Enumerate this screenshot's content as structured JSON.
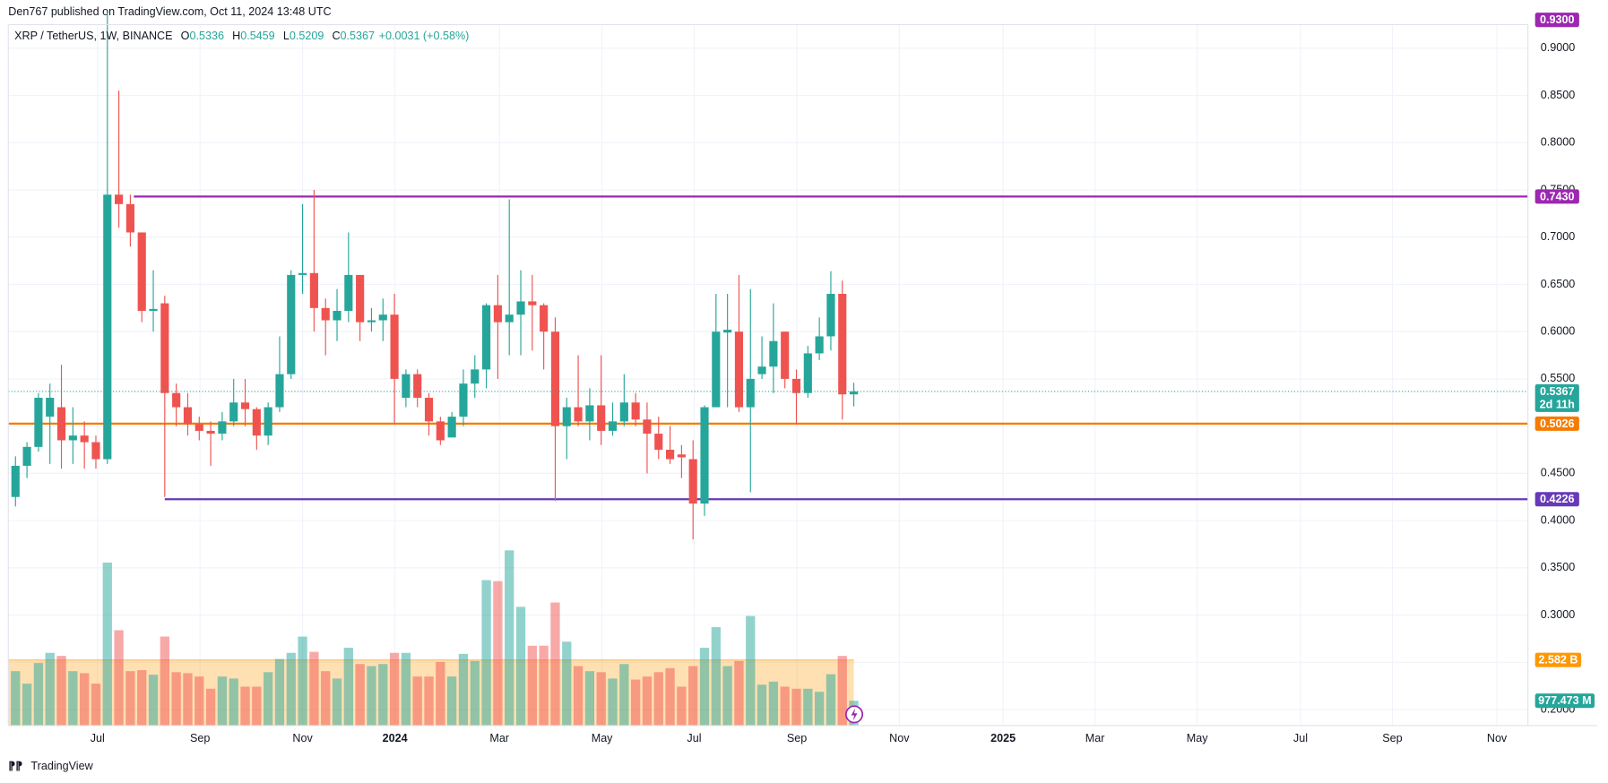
{
  "chart_data": {
    "type": "candlestick",
    "published": "Den767 published on TradingView.com, Oct 11, 2024 13:48 UTC",
    "symbol": "XRP / TetherUS, 1W, BINANCE",
    "ohlc_keys": [
      "O",
      "H",
      "L",
      "C"
    ],
    "change": "+0.0031 (+0.58%)",
    "footer": "TradingView",
    "colors": {
      "up": "#26a69a",
      "down": "#ef5350"
    },
    "grid": true,
    "candles": {
      "open": [
        0.425,
        0.458,
        0.478,
        0.51,
        0.52,
        0.485,
        0.49,
        0.483,
        0.465,
        0.745,
        0.735,
        0.705,
        0.622,
        0.63,
        0.535,
        0.52,
        0.502,
        0.495,
        0.492,
        0.505,
        0.525,
        0.518,
        0.49,
        0.52,
        0.555,
        0.66,
        0.662,
        0.625,
        0.612,
        0.622,
        0.66,
        0.61,
        0.612,
        0.618,
        0.53,
        0.555,
        0.53,
        0.505,
        0.488,
        0.51,
        0.545,
        0.56,
        0.628,
        0.61,
        0.618,
        0.632,
        0.628,
        0.6,
        0.5,
        0.52,
        0.505,
        0.522,
        0.495,
        0.505,
        0.525,
        0.507,
        0.492,
        0.475,
        0.47,
        0.465,
        0.418,
        0.52,
        0.599,
        0.6,
        0.52,
        0.555,
        0.563,
        0.6,
        0.55,
        0.535,
        0.577,
        0.595,
        0.64,
        0.5336
      ],
      "high": [
        0.468,
        0.483,
        0.535,
        0.545,
        0.565,
        0.52,
        0.505,
        0.49,
        0.938,
        0.855,
        0.745,
        0.705,
        0.665,
        0.638,
        0.545,
        0.535,
        0.51,
        0.505,
        0.515,
        0.55,
        0.55,
        0.52,
        0.525,
        0.595,
        0.665,
        0.735,
        0.75,
        0.635,
        0.645,
        0.705,
        0.66,
        0.625,
        0.635,
        0.64,
        0.56,
        0.56,
        0.535,
        0.51,
        0.515,
        0.56,
        0.575,
        0.63,
        0.66,
        0.74,
        0.665,
        0.66,
        0.63,
        0.615,
        0.53,
        0.575,
        0.54,
        0.575,
        0.525,
        0.555,
        0.535,
        0.525,
        0.51,
        0.5,
        0.48,
        0.485,
        0.522,
        0.64,
        0.64,
        0.66,
        0.645,
        0.595,
        0.63,
        0.6,
        0.56,
        0.585,
        0.615,
        0.664,
        0.654,
        0.5459
      ],
      "low": [
        0.415,
        0.445,
        0.473,
        0.46,
        0.455,
        0.46,
        0.455,
        0.455,
        0.46,
        0.71,
        0.69,
        0.61,
        0.6,
        0.425,
        0.5,
        0.49,
        0.485,
        0.458,
        0.485,
        0.5,
        0.5,
        0.475,
        0.48,
        0.515,
        0.55,
        0.64,
        0.6,
        0.575,
        0.59,
        0.61,
        0.59,
        0.6,
        0.59,
        0.502,
        0.52,
        0.52,
        0.49,
        0.48,
        0.5,
        0.5,
        0.53,
        0.54,
        0.55,
        0.575,
        0.575,
        0.58,
        0.56,
        0.421,
        0.465,
        0.5,
        0.485,
        0.48,
        0.49,
        0.5,
        0.5,
        0.45,
        0.465,
        0.46,
        0.445,
        0.38,
        0.405,
        0.52,
        0.52,
        0.515,
        0.43,
        0.55,
        0.535,
        0.54,
        0.502,
        0.53,
        0.57,
        0.58,
        0.507,
        0.5209
      ],
      "close": [
        0.458,
        0.478,
        0.53,
        0.53,
        0.485,
        0.49,
        0.483,
        0.465,
        0.745,
        0.735,
        0.705,
        0.622,
        0.624,
        0.535,
        0.52,
        0.502,
        0.495,
        0.492,
        0.505,
        0.525,
        0.518,
        0.49,
        0.52,
        0.555,
        0.66,
        0.662,
        0.625,
        0.612,
        0.622,
        0.66,
        0.61,
        0.612,
        0.618,
        0.55,
        0.555,
        0.53,
        0.505,
        0.485,
        0.51,
        0.545,
        0.56,
        0.628,
        0.61,
        0.618,
        0.632,
        0.628,
        0.6,
        0.5,
        0.52,
        0.505,
        0.522,
        0.495,
        0.505,
        0.525,
        0.507,
        0.492,
        0.475,
        0.465,
        0.467,
        0.418,
        0.52,
        0.6,
        0.602,
        0.52,
        0.55,
        0.563,
        0.59,
        0.55,
        0.535,
        0.577,
        0.595,
        0.64,
        0.5336,
        0.5367
      ]
    },
    "volume": {
      "values": [
        2.14,
        1.65,
        2.46,
        2.86,
        2.74,
        2.14,
        2.06,
        1.65,
        6.41,
        3.75,
        2.14,
        2.18,
        2.0,
        3.5,
        2.1,
        2.06,
        1.93,
        1.45,
        1.93,
        1.85,
        1.53,
        1.53,
        2.1,
        2.62,
        2.86,
        3.5,
        2.9,
        2.14,
        1.85,
        3.06,
        2.42,
        2.34,
        2.42,
        2.86,
        2.86,
        1.93,
        1.93,
        2.5,
        1.93,
        2.82,
        2.54,
        5.72,
        5.68,
        6.89,
        4.67,
        3.14,
        3.14,
        4.84,
        3.3,
        2.34,
        2.14,
        2.1,
        1.85,
        2.42,
        1.81,
        1.93,
        2.1,
        2.26,
        1.53,
        2.34,
        3.06,
        3.87,
        2.34,
        2.54,
        4.31,
        1.61,
        1.73,
        1.53,
        1.45,
        1.45,
        1.33,
        2.02,
        2.74,
        0.977473
      ],
      "last_label": "977.473 M",
      "ma": 2.582,
      "ma_label": "2.582 B",
      "ma_color": "#ff9800"
    },
    "countdown": "2d 11h",
    "levels": [
      {
        "value": 0.93,
        "label": "0.9300",
        "color": "#9c27b0",
        "line": false
      },
      {
        "value": 0.743,
        "label": "0.7430",
        "color": "#9c27b0",
        "line": true,
        "start": 10.3
      },
      {
        "value": 0.5026,
        "label": "0.5026",
        "color": "#f57c00",
        "line": true,
        "start": -0.625
      },
      {
        "value": 0.4226,
        "label": "0.4226",
        "color": "#673ab7",
        "line": true,
        "start": 13
      }
    ],
    "xlim": [
      -0.625,
      131.7
    ],
    "xticks": [
      {
        "value": 7.14,
        "label": "Jul"
      },
      {
        "value": 16.07,
        "label": "Sep"
      },
      {
        "value": 25,
        "label": "Nov"
      },
      {
        "value": 33.04,
        "label": "2024"
      },
      {
        "value": 42.14,
        "label": "Mar"
      },
      {
        "value": 51.07,
        "label": "May"
      },
      {
        "value": 59.1,
        "label": "Jul"
      },
      {
        "value": 68.04,
        "label": "Sep"
      },
      {
        "value": 76.96,
        "label": "Nov"
      },
      {
        "value": 86,
        "label": "2025"
      },
      {
        "value": 94,
        "label": "Mar"
      },
      {
        "value": 102.9,
        "label": "May"
      },
      {
        "value": 111.9,
        "label": "Jul"
      },
      {
        "value": 119.9,
        "label": "Sep"
      },
      {
        "value": 129,
        "label": "Nov"
      }
    ],
    "ylim": [
      0.183,
      0.925
    ],
    "yticks": [
      {
        "value": 0.2,
        "label": "0.2000"
      },
      {
        "value": 0.25,
        "label": "0.2500"
      },
      {
        "value": 0.3,
        "label": "0.3000"
      },
      {
        "value": 0.35,
        "label": "0.3500"
      },
      {
        "value": 0.4,
        "label": "0.4000"
      },
      {
        "value": 0.45,
        "label": "0.4500"
      },
      {
        "value": 0.5,
        "label": "0.5000"
      },
      {
        "value": 0.55,
        "label": "0.5500"
      },
      {
        "value": 0.6,
        "label": "0.6000"
      },
      {
        "value": 0.65,
        "label": "0.6500"
      },
      {
        "value": 0.7,
        "label": "0.7000"
      },
      {
        "value": 0.75,
        "label": "0.7500"
      },
      {
        "value": 0.8,
        "label": "0.8000"
      },
      {
        "value": 0.85,
        "label": "0.8500"
      },
      {
        "value": 0.9,
        "label": "0.9000"
      }
    ]
  }
}
